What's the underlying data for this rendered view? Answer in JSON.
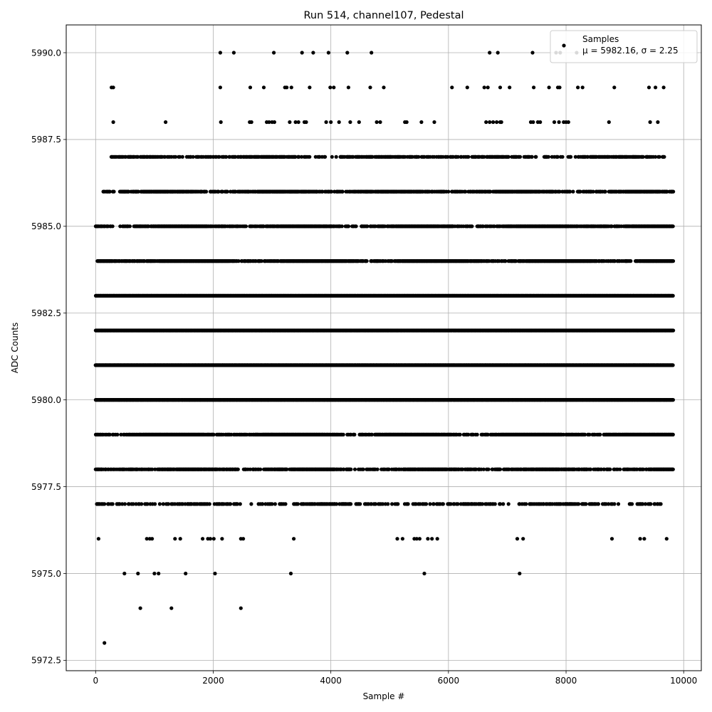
{
  "chart_data": {
    "type": "scatter",
    "title": "Run 514, channel107, Pedestal",
    "xlabel": "Sample #",
    "ylabel": "ADC Counts",
    "xlim": [
      -500,
      10300
    ],
    "ylim": [
      5972.2,
      5990.8
    ],
    "xticks": [
      0,
      2000,
      4000,
      6000,
      8000,
      10000
    ],
    "xtick_labels": [
      "0",
      "2000",
      "4000",
      "6000",
      "8000",
      "10000"
    ],
    "yticks": [
      5972.5,
      5975.0,
      5977.5,
      5980.0,
      5982.5,
      5985.0,
      5987.5,
      5990.0
    ],
    "ytick_labels": [
      "5972.5",
      "5975.0",
      "5977.5",
      "5980.0",
      "5982.5",
      "5985.0",
      "5987.5",
      "5990.0"
    ],
    "grid": true,
    "legend": {
      "placement": "top-right",
      "entry_label": "Samples",
      "stats": "μ = 5982.16, σ = 2.25"
    },
    "marker_color": "#000000",
    "n_samples": 9820,
    "series": [
      {
        "name": "Samples",
        "points_by_level": [
          {
            "y": 5990,
            "x": [
              2120,
              2350,
              3030,
              3510,
              3700,
              3960,
              4280,
              4690,
              6700,
              6840,
              7430,
              7830,
              7900,
              8180
            ]
          },
          {
            "y": 5989,
            "x": [
              270,
              300,
              2120,
              2630,
              2860,
              3220,
              3250,
              3330,
              3640,
              3990,
              4050,
              4300,
              4670,
              4900,
              6060,
              6320,
              6610,
              6670,
              6880,
              7040,
              7450,
              7710,
              7860,
              7890,
              8200,
              8280,
              8820,
              9410,
              9520,
              9660
            ]
          },
          {
            "y": 5988,
            "x": [
              300,
              1190,
              2130,
              2620,
              2650,
              2910,
              2950,
              3000,
              3040,
              3300,
              3400,
              3450,
              3550,
              3580,
              3920,
              4000,
              4140,
              4330,
              4480,
              4780,
              4840,
              5260,
              5290,
              5540,
              5760,
              6640,
              6700,
              6760,
              6820,
              6880,
              6900,
              7400,
              7440,
              7520,
              7560,
              7800,
              7880,
              7960,
              8000,
              8040,
              8730,
              9430,
              9560
            ]
          },
          {
            "y": 5976,
            "x": [
              50,
              870,
              920,
              960,
              1350,
              1440,
              1820,
              1910,
              1950,
              2010,
              2150,
              2470,
              2510,
              3370,
              5130,
              5220,
              5420,
              5460,
              5510,
              5650,
              5720,
              5810,
              7170,
              7270,
              8780,
              9260,
              9330,
              9710
            ]
          },
          {
            "y": 5975,
            "x": [
              490,
              720,
              1000,
              1070,
              1530,
              2030,
              3320,
              5590,
              7210
            ]
          },
          {
            "y": 5974,
            "x": [
              760,
              1290,
              2470
            ]
          },
          {
            "y": 5973,
            "x": [
              150
            ]
          }
        ],
        "levels": [
          {
            "y": 5987,
            "x_range": [
              250,
              9680
            ],
            "density": 0.5
          },
          {
            "y": 5986,
            "x_range": [
              80,
              9820
            ],
            "density": 0.65
          },
          {
            "y": 5985,
            "x_range": [
              0,
              9820
            ],
            "density": 0.8
          },
          {
            "y": 5984,
            "x_range": [
              30,
              9820
            ],
            "density": 0.95
          },
          {
            "y": 5983,
            "x_range": [
              0,
              9820
            ],
            "density": 1.0
          },
          {
            "y": 5982,
            "x_range": [
              0,
              9820
            ],
            "density": 1.0
          },
          {
            "y": 5981,
            "x_range": [
              0,
              9820
            ],
            "density": 1.0
          },
          {
            "y": 5980,
            "x_range": [
              0,
              9820
            ],
            "density": 1.0
          },
          {
            "y": 5979,
            "x_range": [
              0,
              9820
            ],
            "density": 0.9
          },
          {
            "y": 5978,
            "x_range": [
              0,
              9820
            ],
            "density": 0.7
          },
          {
            "y": 5977,
            "x_range": [
              0,
              9640
            ],
            "density": 0.35
          }
        ]
      }
    ]
  }
}
